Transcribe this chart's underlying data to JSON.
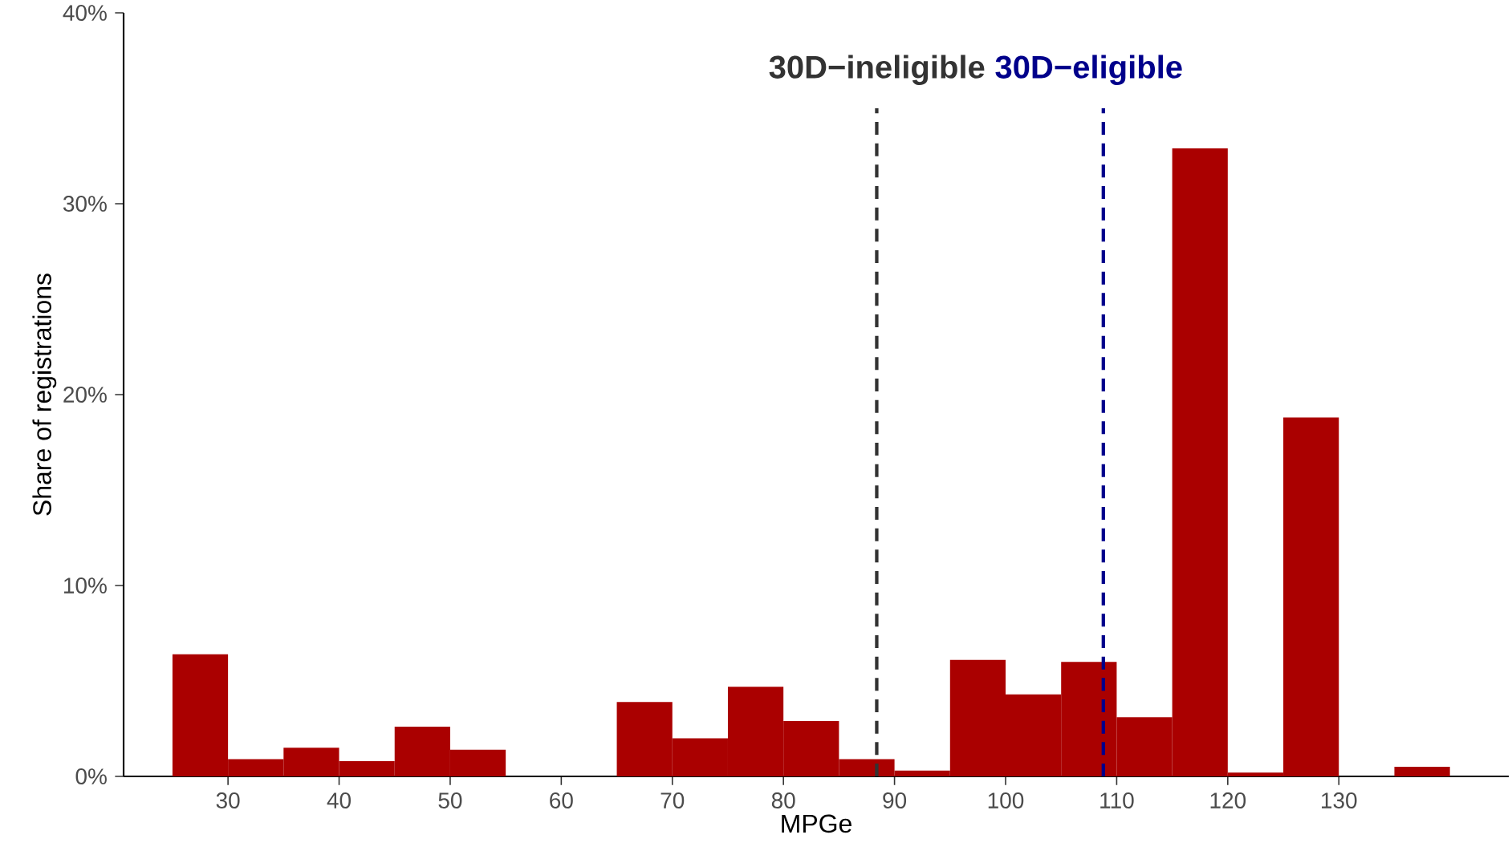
{
  "chart_data": {
    "type": "histogram",
    "xlabel": "MPGe",
    "ylabel": "Share of registrations",
    "bins": [
      25,
      30,
      35,
      40,
      45,
      50,
      55,
      60,
      65,
      70,
      75,
      80,
      85,
      90,
      95,
      100,
      105,
      110,
      115,
      120,
      125,
      130,
      135,
      140
    ],
    "values": [
      6.4,
      0.9,
      1.5,
      0.8,
      2.6,
      1.4,
      0,
      0,
      3.9,
      2.0,
      4.7,
      2.9,
      0.9,
      0.3,
      6.1,
      4.3,
      6.0,
      3.1,
      32.9,
      0.2,
      18.8,
      0,
      0.5
    ],
    "color": "#aa0000",
    "xlim": [
      20.6,
      145.3
    ],
    "ylim": [
      0,
      40
    ],
    "xticks": [
      30,
      40,
      50,
      60,
      70,
      80,
      90,
      100,
      110,
      120,
      130
    ],
    "yticks": [
      {
        "value": 0,
        "label": "0%"
      },
      {
        "value": 10,
        "label": "10%"
      },
      {
        "value": 20,
        "label": "20%"
      },
      {
        "value": 30,
        "label": "30%"
      },
      {
        "value": 40,
        "label": "40%"
      }
    ],
    "ref_lines": [
      {
        "axis": "x",
        "value": 88.4,
        "label": "30D−ineligible",
        "color": "#333333",
        "line_style": "dashed"
      },
      {
        "axis": "x",
        "value": 108.8,
        "label": "30D−eligible",
        "color": "#00008b",
        "line_style": "dashed"
      }
    ],
    "grid": false
  }
}
